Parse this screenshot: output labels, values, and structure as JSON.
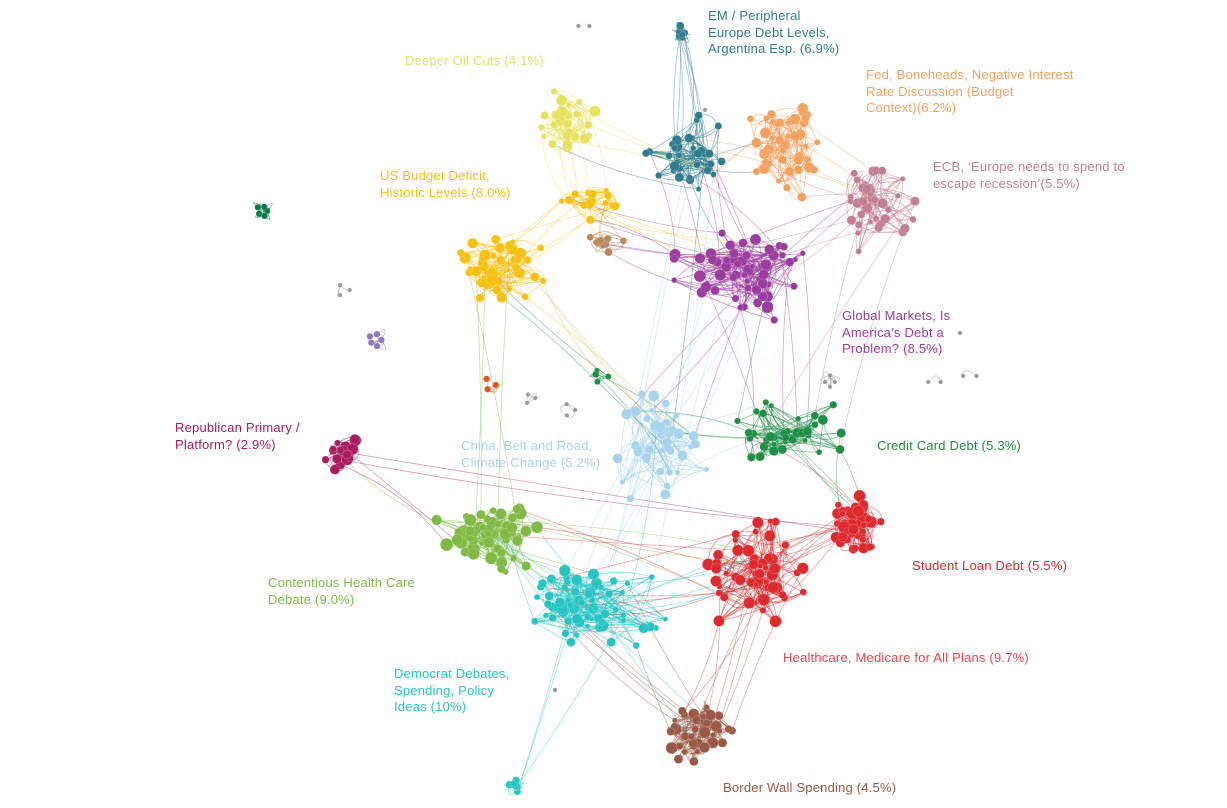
{
  "colors": {
    "teal": "#2e7d8c",
    "orange": "#f2a15f",
    "yellow_light": "#e5e35e",
    "yellow": "#f7c114",
    "mauve": "#c27f93",
    "purple": "#9b3d9e",
    "dark_green": "#0f7a47",
    "green": "#1f8f45",
    "light_blue": "#a8d3ec",
    "magenta": "#a81c5f",
    "lime": "#80ba45",
    "red": "#dd2a2f",
    "cyan": "#27c4c4",
    "brown": "#9a5846",
    "tan": "#b9885f",
    "gray": "#9a9a9a",
    "lavender": "#8f78bd",
    "red_orange": "#e5531f"
  },
  "clusters": [
    {
      "key": "em",
      "label": [
        "EM / Peripheral",
        "Europe Debt Levels,",
        "Argentina Esp. (6.9%)"
      ],
      "color": "#2e7d8c"
    },
    {
      "key": "fed",
      "label": [
        "Fed, Boneheads, Negative Interest",
        "Rate Discussion (Budget",
        "Context)(6.2%)"
      ],
      "color": "#f2a15f"
    },
    {
      "key": "oil",
      "label": [
        "Deeper Oil Cuts (4.1%)"
      ],
      "color": "#e5e35e"
    },
    {
      "key": "ecb",
      "label": [
        "ECB, ‘Europe needs to spend to",
        "escape recession’(5.5%)"
      ],
      "color": "#c27f93"
    },
    {
      "key": "budget",
      "label": [
        "US Budget Deficit,",
        "Historic Levels (8.0%)"
      ],
      "color": "#f7c114"
    },
    {
      "key": "global",
      "label": [
        "Global Markets, Is",
        "America’s Debt a",
        "Problem? (8.5%)"
      ],
      "color": "#9b3d9e"
    },
    {
      "key": "china",
      "label": [
        "China, Belt and Road,",
        "Climate Change (5.2%)"
      ],
      "color": "#a8d3ec"
    },
    {
      "key": "credit",
      "label": [
        "Credit Card Debt (5.3%)"
      ],
      "color": "#1f8f45"
    },
    {
      "key": "republican",
      "label": [
        "Republican Primary /",
        "Platform? (2.9%)"
      ],
      "color": "#a81c5f"
    },
    {
      "key": "student",
      "label": [
        "Student Loan Debt (5.5%)"
      ],
      "color": "#dd2a2f"
    },
    {
      "key": "health",
      "label": [
        "Contentious Health Care",
        "Debate (9.0%)"
      ],
      "color": "#80ba45"
    },
    {
      "key": "medicare",
      "label": [
        "Healthcare, Medicare for All Plans (9.7%)"
      ],
      "color": "#e34a4a"
    },
    {
      "key": "democrat",
      "label": [
        "Democrat Debates,",
        "Spending, Policy",
        "Ideas (10%)"
      ],
      "color": "#27c4c4"
    },
    {
      "key": "border",
      "label": [
        "Border Wall Spending (4.5%)"
      ],
      "color": "#9a5846"
    }
  ]
}
